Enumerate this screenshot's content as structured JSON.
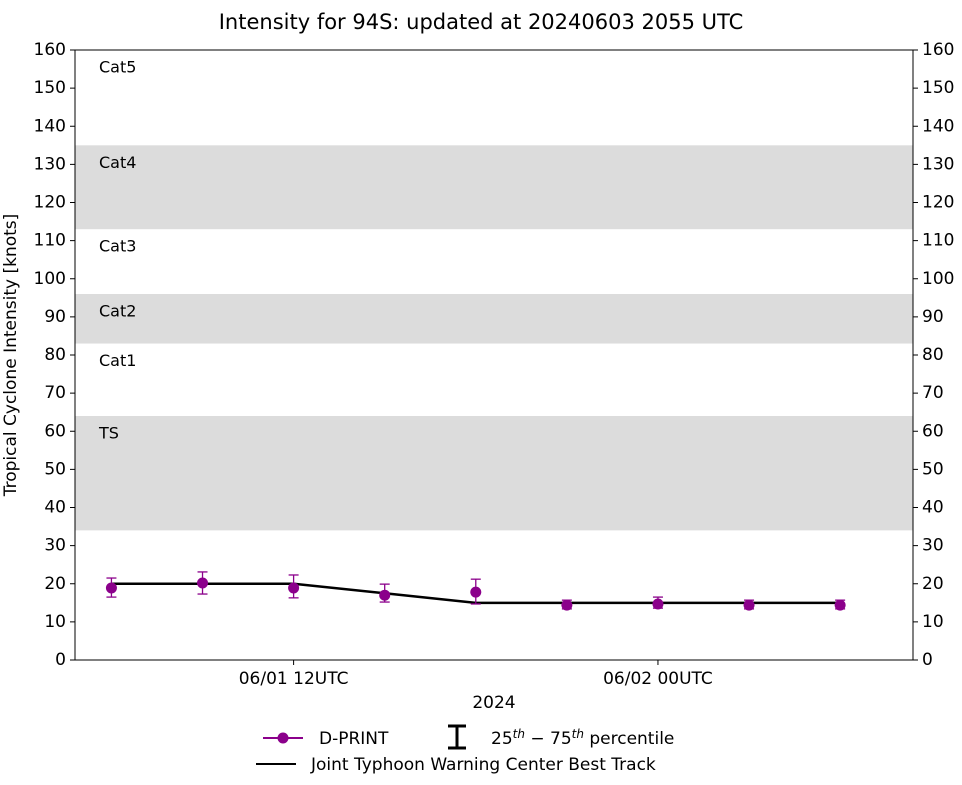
{
  "chart_data": {
    "type": "line",
    "title": "Intensity for 94S: updated at 20240603 2055 UTC",
    "ylabel": "Tropical Cyclone Intensity [knots]",
    "xlabel": "2024",
    "x": [
      6,
      9,
      12,
      15,
      18,
      21,
      24,
      27,
      30
    ],
    "xlim": [
      4.8,
      32.4
    ],
    "xticks": [
      {
        "value": 12,
        "label": "06/01 12UTC"
      },
      {
        "value": 24,
        "label": "06/02 00UTC"
      }
    ],
    "ylim": [
      0,
      160
    ],
    "yticks": [
      0,
      10,
      20,
      30,
      40,
      50,
      60,
      70,
      80,
      90,
      100,
      110,
      120,
      130,
      140,
      150,
      160
    ],
    "y2lim": [
      0,
      160
    ],
    "y2ticks": [
      0,
      10,
      20,
      30,
      40,
      50,
      60,
      70,
      80,
      90,
      100,
      110,
      120,
      130,
      140,
      150,
      160
    ],
    "bands": [
      {
        "label": "TS",
        "range": [
          34,
          64
        ],
        "shaded": true
      },
      {
        "label": "Cat1",
        "range": [
          64,
          83
        ],
        "shaded": false
      },
      {
        "label": "Cat2",
        "range": [
          83,
          96
        ],
        "shaded": true
      },
      {
        "label": "Cat3",
        "range": [
          96,
          113
        ],
        "shaded": false
      },
      {
        "label": "Cat4",
        "range": [
          113,
          135
        ],
        "shaded": true
      },
      {
        "label": "Cat5",
        "range": [
          135,
          160
        ],
        "shaded": false
      }
    ],
    "band_color": "#dcdcdc",
    "series": [
      {
        "name": "D-PRINT",
        "color": "#8b008b",
        "markers": true,
        "values": [
          18.9,
          20.2,
          18.9,
          17.0,
          17.8,
          14.4,
          14.7,
          14.4,
          14.4
        ],
        "low": [
          16.5,
          17.3,
          16.3,
          15.2,
          14.7,
          13.4,
          13.6,
          13.4,
          13.4
        ],
        "high": [
          21.5,
          23.1,
          22.3,
          19.9,
          21.2,
          15.7,
          16.5,
          15.7,
          15.7
        ]
      },
      {
        "name": "Joint Typhoon Warning Center Best Track",
        "color": "#000000",
        "markers": false,
        "values": [
          20,
          20,
          20,
          17.5,
          15,
          15,
          15,
          15,
          15
        ]
      }
    ],
    "errorbar_legend": [
      "25",
      "th",
      " − 75",
      "th",
      " percentile"
    ]
  }
}
